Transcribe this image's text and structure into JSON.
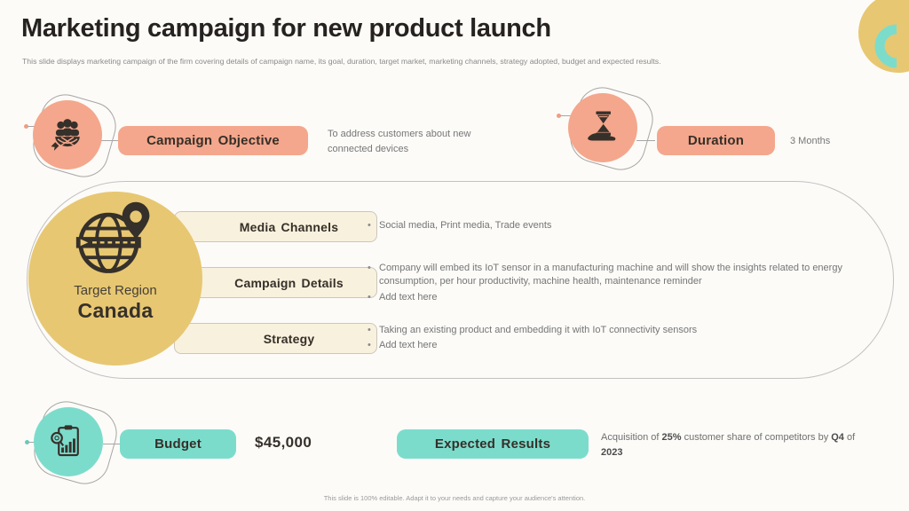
{
  "title": "Marketing campaign for new product launch",
  "subtitle": "This slide displays marketing campaign of the firm covering details of campaign name, its goal, duration, target market, marketing channels, strategy adopted, budget and expected results.",
  "footer": "This slide is 100% editable. Adapt it to your needs and capture your audience's attention.",
  "colors": {
    "salmon": "#F4A78C",
    "teal": "#7CDCCC",
    "yellow": "#E7C772",
    "cream": "#F8F1DD",
    "dark": "#36302A",
    "gray_text": "#777777"
  },
  "objective": {
    "label": "Campaign Objective",
    "description": "To address customers about new connected devices",
    "icon": "target-audience-icon"
  },
  "duration": {
    "label": "Duration",
    "value": "3 Months",
    "icon": "hourglass-hand-icon"
  },
  "target_region": {
    "caption": "Target Region",
    "value": "Canada",
    "icon": "globe-location-pin-icon"
  },
  "details_rows": [
    {
      "label": "Media Channels",
      "bullets": [
        "Social media, Print media, Trade events"
      ]
    },
    {
      "label": "Campaign Details",
      "bullets": [
        "Company will embed its IoT sensor in a manufacturing machine and will show the insights related to energy consumption, per hour productivity, machine health, maintenance reminder",
        "Add text here"
      ]
    },
    {
      "label": "Strategy",
      "bullets": [
        "Taking an existing product and embedding it with IoT connectivity sensors",
        "Add text here"
      ]
    }
  ],
  "budget": {
    "label": "Budget",
    "value": "$45,000",
    "icon": "budget-analysis-icon"
  },
  "expected_results": {
    "label": "Expected Results",
    "segments": [
      {
        "text": "Acquisition of ",
        "bold": false
      },
      {
        "text": "25%",
        "bold": true
      },
      {
        "text": " customer share of competitors by ",
        "bold": false
      },
      {
        "text": "Q4",
        "bold": true
      },
      {
        "text": " of ",
        "bold": false
      },
      {
        "text": "2023",
        "bold": true
      }
    ]
  }
}
